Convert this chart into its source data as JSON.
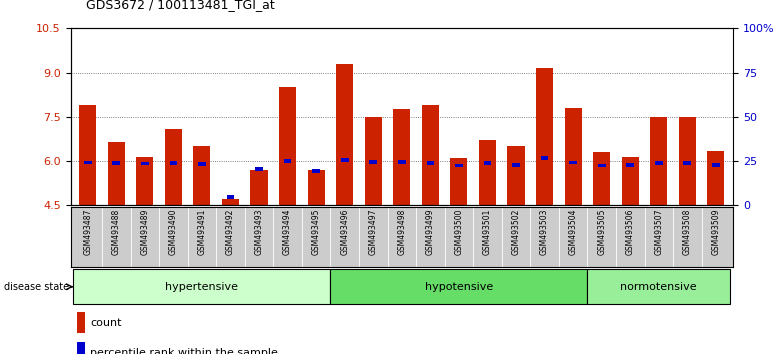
{
  "title": "GDS3672 / 100113481_TGI_at",
  "samples": [
    "GSM493487",
    "GSM493488",
    "GSM493489",
    "GSM493490",
    "GSM493491",
    "GSM493492",
    "GSM493493",
    "GSM493494",
    "GSM493495",
    "GSM493496",
    "GSM493497",
    "GSM493498",
    "GSM493499",
    "GSM493500",
    "GSM493501",
    "GSM493502",
    "GSM493503",
    "GSM493504",
    "GSM493505",
    "GSM493506",
    "GSM493507",
    "GSM493508",
    "GSM493509"
  ],
  "count_values": [
    7.9,
    6.65,
    6.15,
    7.1,
    6.5,
    4.7,
    5.7,
    8.5,
    5.7,
    9.3,
    7.5,
    7.75,
    7.9,
    6.1,
    6.7,
    6.5,
    9.15,
    7.8,
    6.3,
    6.15,
    7.5,
    7.5,
    6.35
  ],
  "percentile_values": [
    5.95,
    5.93,
    5.92,
    5.93,
    5.91,
    4.78,
    5.72,
    6.0,
    5.65,
    6.05,
    5.97,
    5.97,
    5.94,
    5.85,
    5.93,
    5.86,
    6.1,
    5.95,
    5.85,
    5.87,
    5.93,
    5.93,
    5.88
  ],
  "groups": [
    {
      "label": "hypertensive",
      "start": 0,
      "end": 9,
      "color": "#ccffcc"
    },
    {
      "label": "hypotensive",
      "start": 9,
      "end": 18,
      "color": "#66dd66"
    },
    {
      "label": "normotensive",
      "start": 18,
      "end": 23,
      "color": "#99ee99"
    }
  ],
  "ylim_left": [
    4.5,
    10.5
  ],
  "yticks_left": [
    4.5,
    6.0,
    7.5,
    9.0,
    10.5
  ],
  "yticks_right_vals": [
    0,
    25,
    50,
    75,
    100
  ],
  "yticks_right_labels": [
    "0",
    "25",
    "50",
    "75",
    "100%"
  ],
  "bar_color": "#cc2200",
  "percentile_color": "#0000cc",
  "bar_width": 0.6,
  "background_color": "#ffffff",
  "plot_bg_color": "#ffffff",
  "tick_label_area_color": "#cccccc",
  "legend_count_label": "count",
  "legend_percentile_label": "percentile rank within the sample",
  "disease_state_label": "disease state",
  "dotted_line_color": "#555555",
  "ytick_left_color": "#cc2200",
  "ytick_right_color": "#0000cc"
}
